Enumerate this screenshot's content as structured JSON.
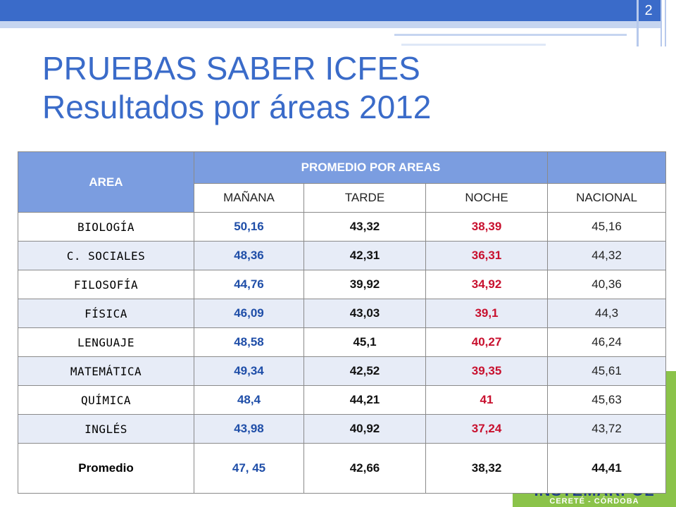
{
  "slide": {
    "number": "2"
  },
  "title": {
    "line1": "PRUEBAS SABER ICFES",
    "line2": "Resultados por áreas 2012"
  },
  "logo": {
    "name": "INSTEMARPOL",
    "location": "CERETÉ - CÓRDOBA"
  },
  "table": {
    "header_area": "AREA",
    "header_group": "PROMEDIO POR AREAS",
    "columns": [
      "MAÑANA",
      "TARDE",
      "NOCHE",
      "NACIONAL"
    ],
    "rows": [
      {
        "area": "BIOLOGÍA",
        "manana": "50,16",
        "tarde": "43,32",
        "noche": "38,39",
        "nacional": "45,16"
      },
      {
        "area": "C. SOCIALES",
        "manana": "48,36",
        "tarde": "42,31",
        "noche": "36,31",
        "nacional": "44,32"
      },
      {
        "area": "FILOSOFÍA",
        "manana": "44,76",
        "tarde": "39,92",
        "noche": "34,92",
        "nacional": "40,36"
      },
      {
        "area": "FÍSICA",
        "manana": "46,09",
        "tarde": "43,03",
        "noche": "39,1",
        "nacional": "44,3"
      },
      {
        "area": "LENGUAJE",
        "manana": "48,58",
        "tarde": "45,1",
        "noche": "40,27",
        "nacional": "46,24"
      },
      {
        "area": "MATEMÁTICA",
        "manana": "49,34",
        "tarde": "42,52",
        "noche": "39,35",
        "nacional": "45,61"
      },
      {
        "area": "QUÍMICA",
        "manana": "48,4",
        "tarde": "44,21",
        "noche": "41",
        "nacional": "45,63"
      },
      {
        "area": "INGLÉS",
        "manana": "43,98",
        "tarde": "40,92",
        "noche": "37,24",
        "nacional": "43,72"
      }
    ],
    "average": {
      "label": "Promedio",
      "manana": "47, 45",
      "tarde": "42,66",
      "noche": "38,32",
      "nacional": "44,41"
    }
  },
  "colors": {
    "accent": "#3a6bc9",
    "header": "#7b9de0",
    "morning": "#1f4ea8",
    "night": "#c8102e",
    "logo_bg": "#8bc34a"
  }
}
